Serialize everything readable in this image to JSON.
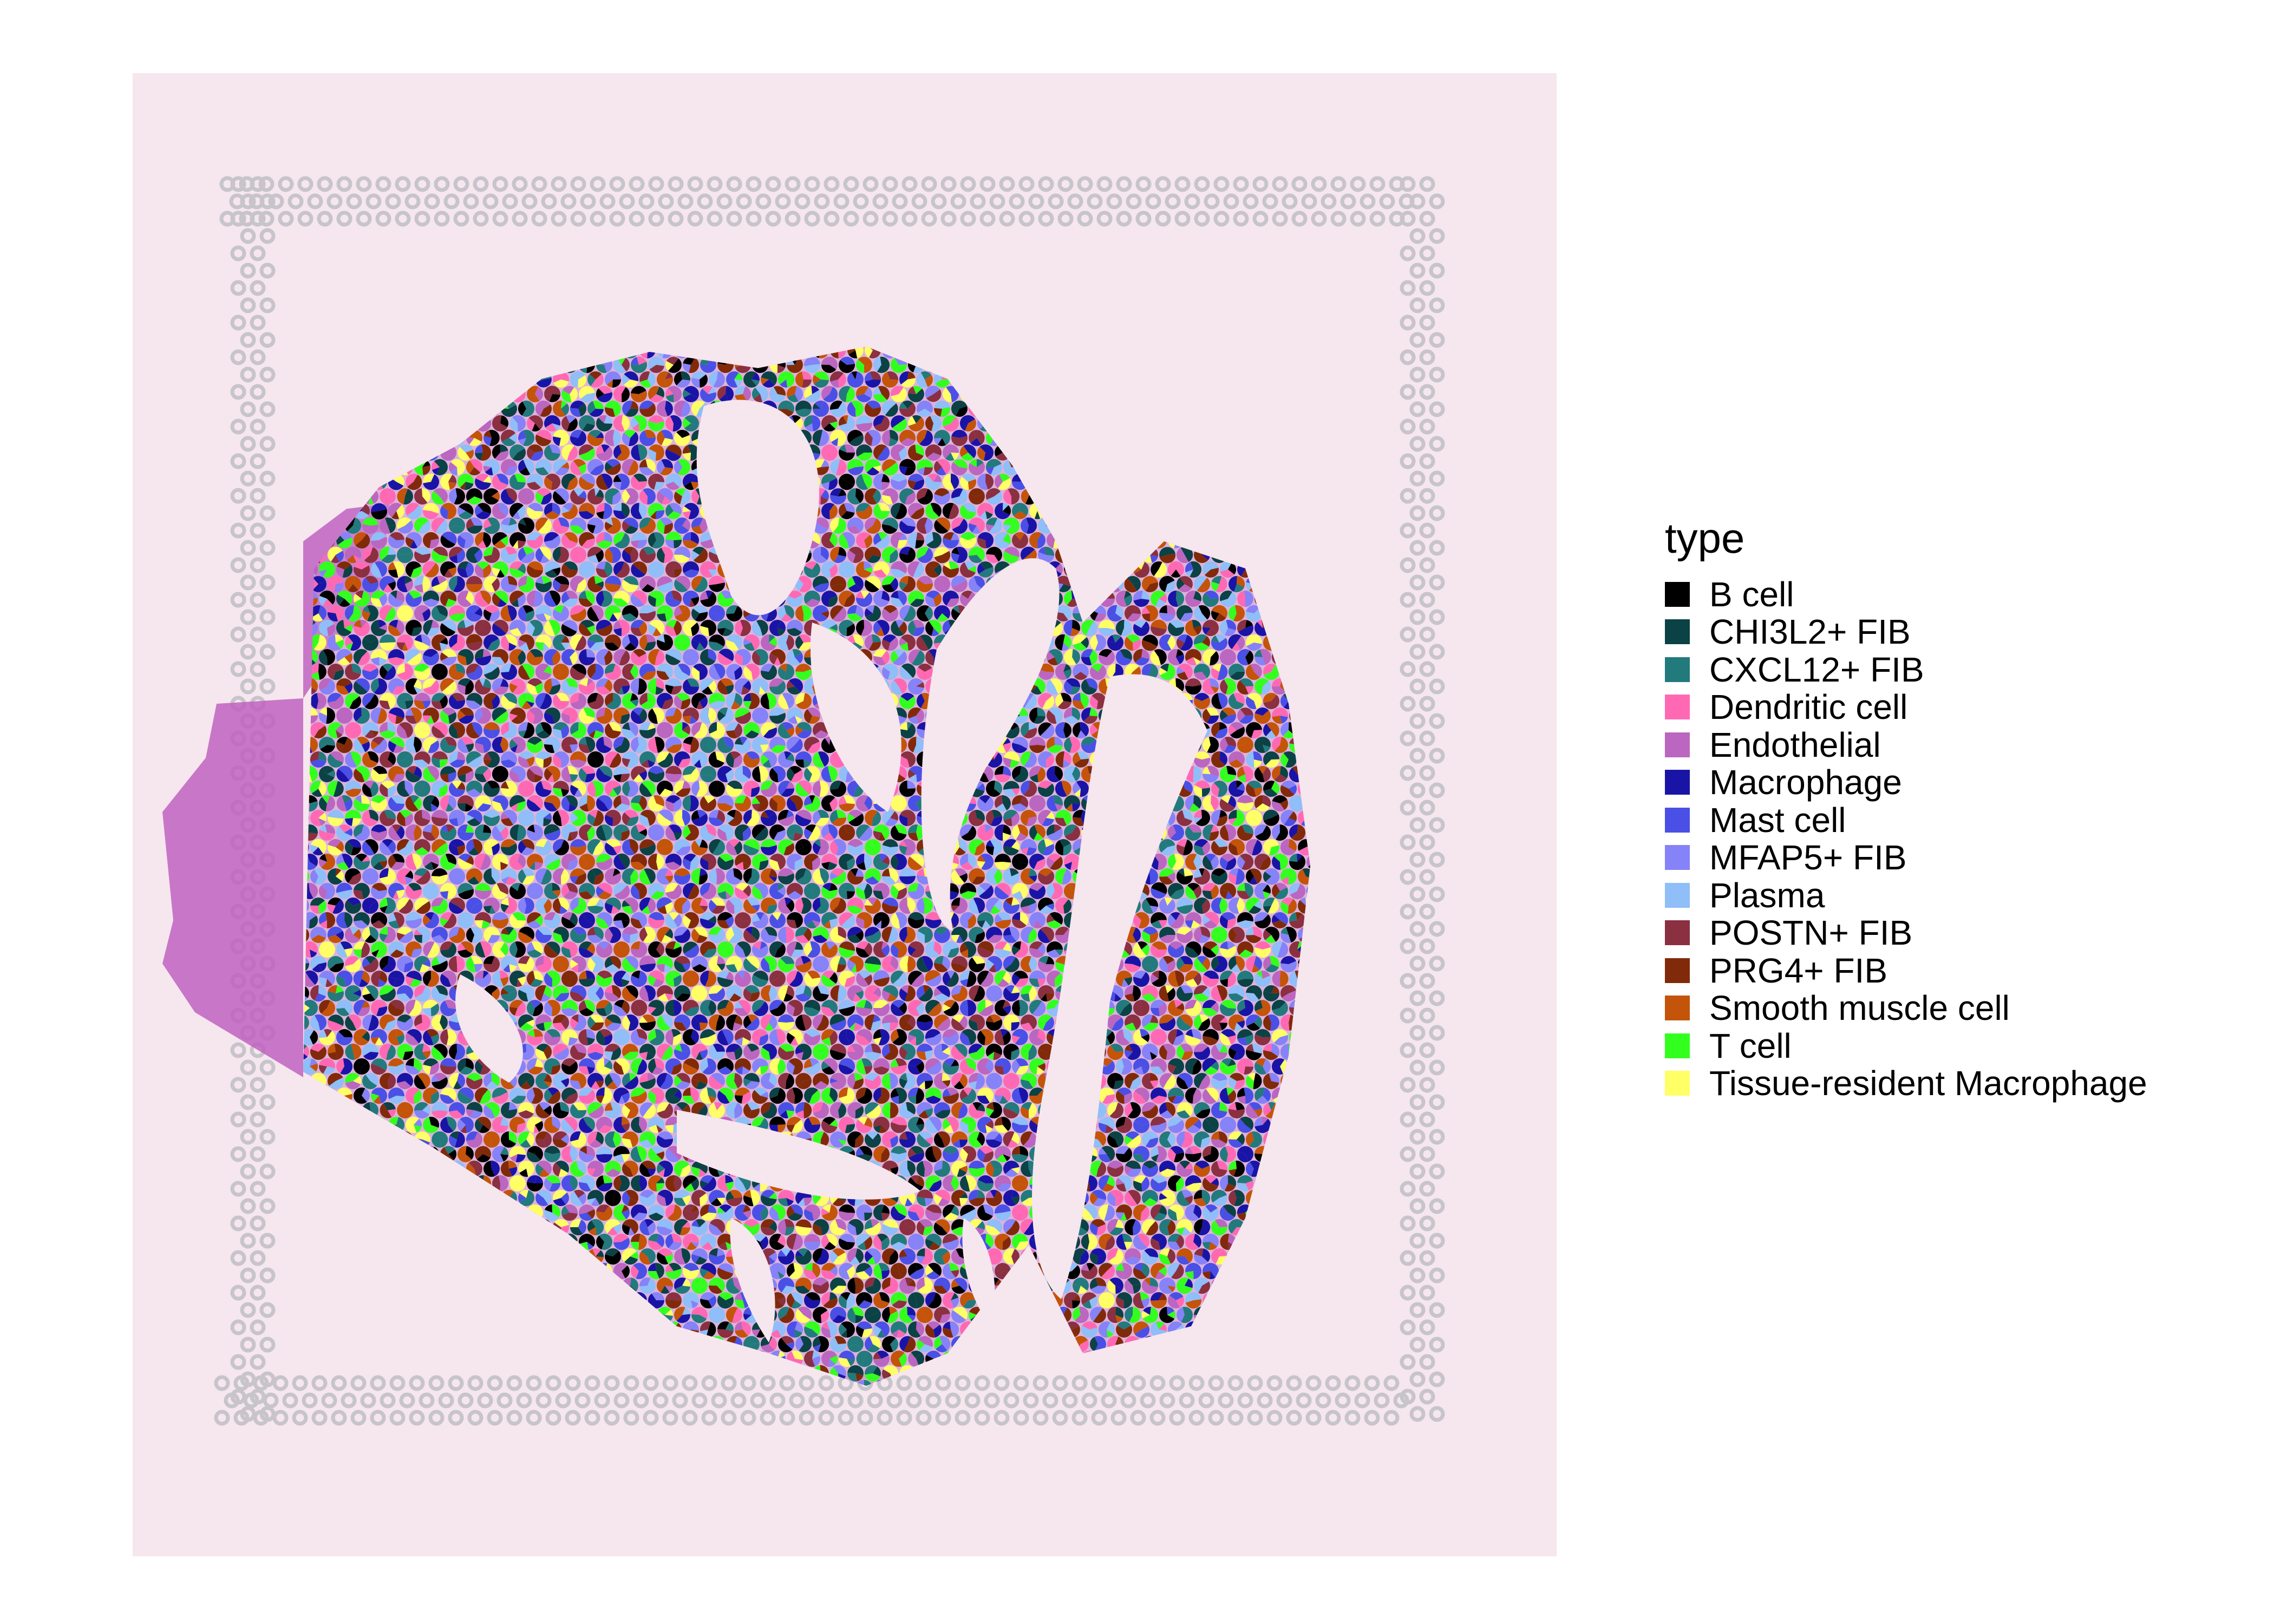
{
  "legend": {
    "title": "type",
    "items": [
      {
        "label": "B cell",
        "color": "#000000"
      },
      {
        "label": "CHI3L2+ FIB",
        "color": "#0b4245"
      },
      {
        "label": "CXCL12+ FIB",
        "color": "#227a7d"
      },
      {
        "label": "Dendritic cell",
        "color": "#ff69b4"
      },
      {
        "label": "Endothelial",
        "color": "#bb66c0"
      },
      {
        "label": "Macrophage",
        "color": "#1a14a6"
      },
      {
        "label": "Mast cell",
        "color": "#4a50e6"
      },
      {
        "label": "MFAP5+ FIB",
        "color": "#8682f8"
      },
      {
        "label": "Plasma",
        "color": "#8fbef8"
      },
      {
        "label": "POSTN+ FIB",
        "color": "#8a3040"
      },
      {
        "label": "PRG4+ FIB",
        "color": "#812a0a"
      },
      {
        "label": "Smooth muscle cell",
        "color": "#c4540a"
      },
      {
        "label": "T cell",
        "color": "#33ff1f"
      },
      {
        "label": "Tissue-resident Macrophage",
        "color": "#ffff66"
      }
    ]
  },
  "colors": {
    "slide_background": "#f6e6ee",
    "fiducial_spot": "#c7c4cb",
    "tissue_stain": "#c062c0"
  }
}
